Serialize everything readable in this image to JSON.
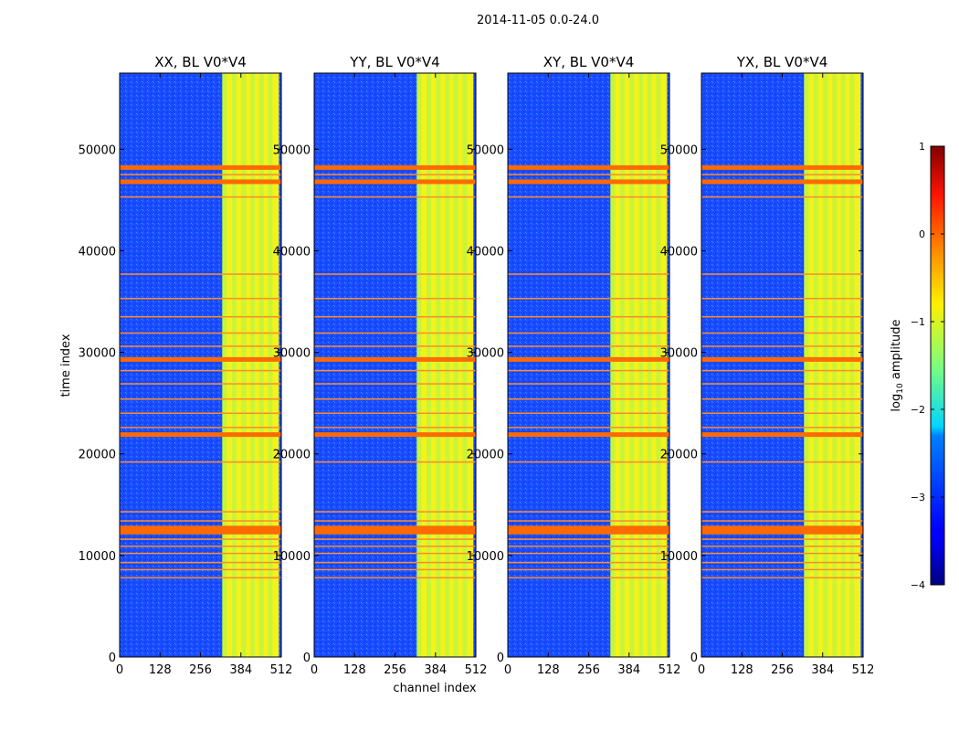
{
  "suptitle": "2014-11-05 0.0-24.0",
  "chart_data": {
    "type": "heatmap",
    "title": "2014-11-05 0.0-24.0",
    "xlabel": "channel index",
    "ylabel": "time index",
    "xlim": [
      0,
      512
    ],
    "ylim": [
      0,
      57500
    ],
    "xticks": [
      "0",
      "128",
      "256",
      "384",
      "512"
    ],
    "yticks": [
      "0",
      "10000",
      "20000",
      "30000",
      "40000",
      "50000"
    ],
    "xtick_values": [
      0,
      128,
      256,
      384,
      512
    ],
    "ytick_values": [
      0,
      10000,
      20000,
      30000,
      40000,
      50000
    ],
    "colormap": "jet",
    "colorbar": {
      "label_prefix": "log",
      "label_sub": "10",
      "label_suffix": " amplitude",
      "range": [
        -4,
        1
      ],
      "ticks": [
        "1",
        "0",
        "−1",
        "−2",
        "−3",
        "−4"
      ],
      "tick_values": [
        1,
        0,
        -1,
        -2,
        -3,
        -4
      ]
    },
    "panels": [
      {
        "title": "XX, BL V0*V4"
      },
      {
        "title": "YY, BL V0*V4"
      },
      {
        "title": "XY, BL V0*V4"
      },
      {
        "title": "YX, BL V0*V4"
      }
    ],
    "features": {
      "hot_channel_range": [
        325,
        495
      ],
      "hot_channel_lines": [
        325,
        340,
        356,
        370,
        385,
        400,
        415,
        428,
        442,
        456,
        470,
        484
      ],
      "flagged_rows": [
        7800,
        8600,
        9300,
        10200,
        10900,
        11600,
        12300,
        12700,
        13400,
        14300,
        19200,
        21900,
        22600,
        24000,
        25400,
        26900,
        28200,
        29300,
        30600,
        31900,
        33500,
        35300,
        37700,
        45300,
        46800,
        47500,
        48200
      ],
      "strong_rows": [
        12300,
        12700,
        21900,
        29300,
        46800,
        48200
      ]
    }
  }
}
